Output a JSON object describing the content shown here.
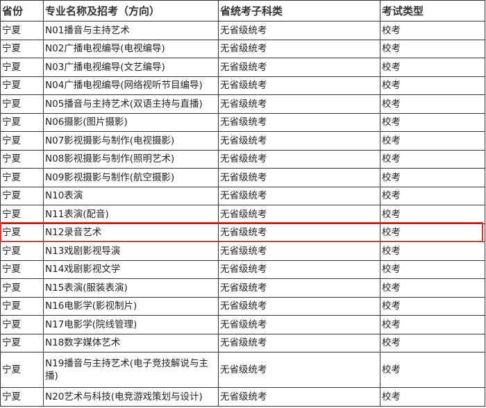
{
  "headers": [
    "省份",
    "专业名称及招考（方向）",
    "省统考子科类",
    "考试类型"
  ],
  "highlight_color": "#d9342b",
  "highlighted_row": 11,
  "rows": [
    [
      "宁夏",
      "N01播音与主持艺术",
      "无省级统考",
      "校考"
    ],
    [
      "宁夏",
      "N02广播电视编导(电视编导)",
      "无省级统考",
      "校考"
    ],
    [
      "宁夏",
      "N03广播电视编导(文艺编导)",
      "无省级统考",
      "校考"
    ],
    [
      "宁夏",
      "N04广播电视编导(网络视听节目编导)",
      "无省级统考",
      "校考"
    ],
    [
      "宁夏",
      "N05播音与主持艺术(双语主持与直播)",
      "无省级统考",
      "校考"
    ],
    [
      "宁夏",
      "N06摄影(图片摄影)",
      "无省级统考",
      "校考"
    ],
    [
      "宁夏",
      "N07影视摄影与制作(电视摄影)",
      "无省级统考",
      "校考"
    ],
    [
      "宁夏",
      "N08影视摄影与制作(照明艺术)",
      "无省级统考",
      "校考"
    ],
    [
      "宁夏",
      "N09影视摄影与制作(航空摄影)",
      "无省级统考",
      "校考"
    ],
    [
      "宁夏",
      "N10表演",
      "无省级统考",
      "校考"
    ],
    [
      "宁夏",
      "N11表演(配音)",
      "无省级统考",
      "校考"
    ],
    [
      "宁夏",
      "N12录音艺术",
      "无省级统考",
      "校考"
    ],
    [
      "宁夏",
      "N13戏剧影视导演",
      "无省级统考",
      "校考"
    ],
    [
      "宁夏",
      "N14戏剧影视文学",
      "无省级统考",
      "校考"
    ],
    [
      "宁夏",
      "N15表演(服装表演)",
      "无省级统考",
      "校考"
    ],
    [
      "宁夏",
      "N16电影学(影视制片)",
      "无省级统考",
      "校考"
    ],
    [
      "宁夏",
      "N17电影学(院线管理)",
      "无省级统考",
      "校考"
    ],
    [
      "宁夏",
      "N18数字媒体艺术",
      "无省级统考",
      "校考"
    ],
    [
      "宁夏",
      "N19播音与主持艺术(电子竞技解说与主播)",
      "无省级统考",
      "校考"
    ],
    [
      "宁夏",
      "N20艺术与科技(电竞游戏策划与设计)",
      "无省级统考",
      "校考"
    ]
  ]
}
